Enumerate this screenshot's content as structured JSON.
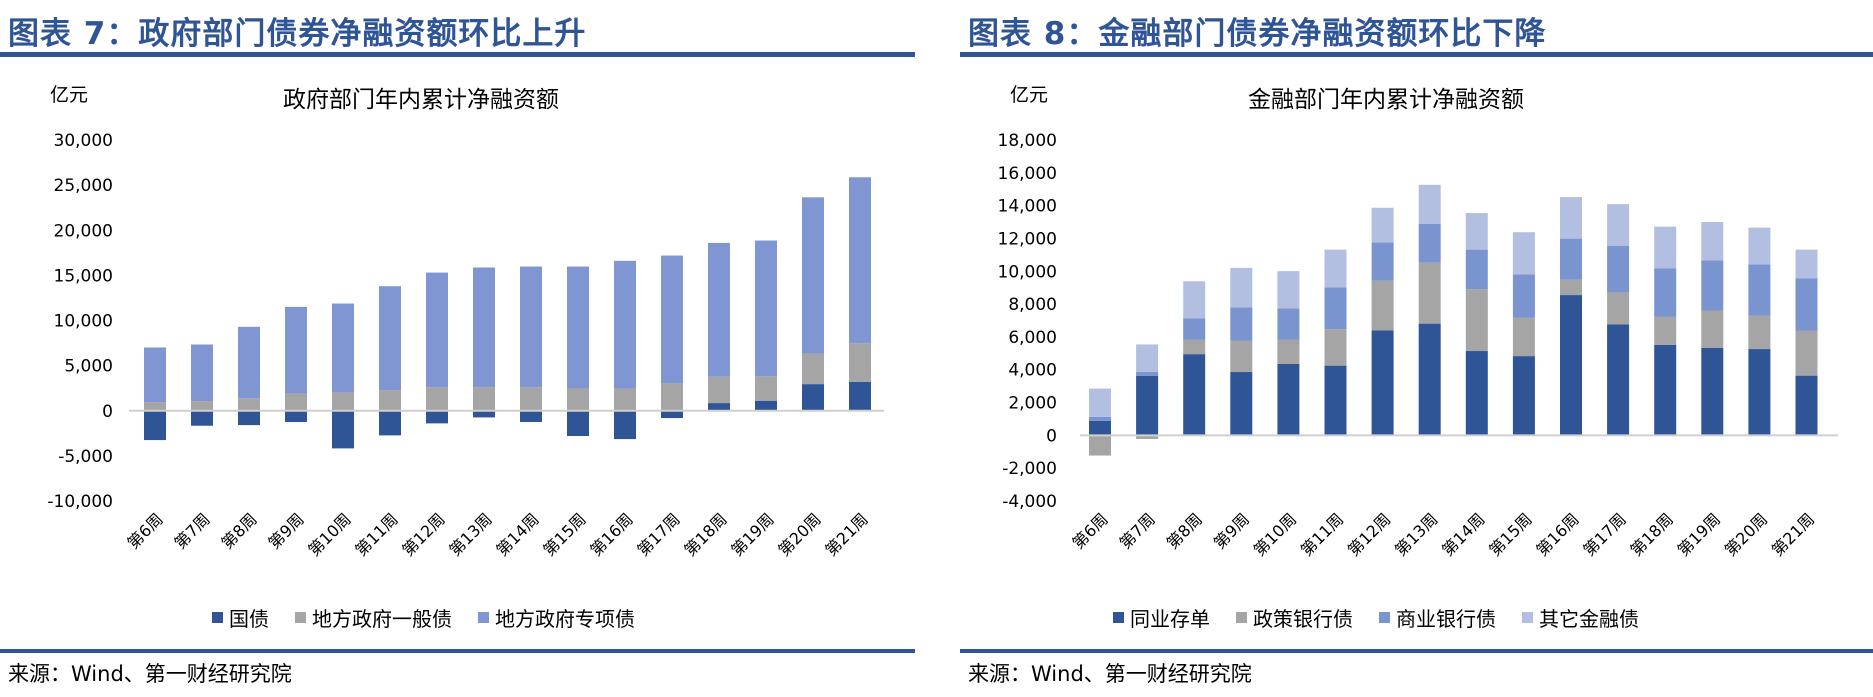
{
  "panels": [
    {
      "figure_title": "图表 7：政府部门债券净融资额环比上升",
      "source": "来源：Wind、第一财经研究院"
    },
    {
      "figure_title": "图表 8：金融部门债券净融资额环比下降",
      "source": "来源：Wind、第一财经研究院"
    }
  ],
  "chart_data": [
    {
      "type": "bar",
      "stacked": true,
      "title": "政府部门年内累计净融资额",
      "ylabel": "亿元",
      "xlabel": "",
      "ylim": [
        -10000,
        30000
      ],
      "yticks": [
        30000,
        25000,
        20000,
        15000,
        10000,
        5000,
        0,
        -5000,
        -10000
      ],
      "ytick_labels": [
        "30,000",
        "25,000",
        "20,000",
        "15,000",
        "10,000",
        "5,000",
        "0",
        "-5,000",
        "-10,000"
      ],
      "categories": [
        "第6周",
        "第7周",
        "第8周",
        "第9周",
        "第10周",
        "第11周",
        "第12周",
        "第13周",
        "第14周",
        "第15周",
        "第16周",
        "第17周",
        "第18周",
        "第19周",
        "第20周",
        "第21周"
      ],
      "legend_position": "bottom",
      "series": [
        {
          "name": "国债",
          "color": "#2f5597",
          "values": [
            -3250,
            -1660,
            -1590,
            -1250,
            -4170,
            -2730,
            -1400,
            -740,
            -1250,
            -2800,
            -3140,
            -810,
            850,
            1110,
            2950,
            3210
          ]
        },
        {
          "name": "地方政府一般债",
          "color": "#a5a5a5",
          "values": [
            960,
            1070,
            1400,
            1920,
            2030,
            2290,
            2620,
            2620,
            2620,
            2470,
            2470,
            3030,
            2910,
            2730,
            3400,
            4280
          ]
        },
        {
          "name": "地方政府专项债",
          "color": "#7f96d2",
          "values": [
            6050,
            6270,
            7900,
            9590,
            9850,
            11510,
            12690,
            13250,
            13360,
            13510,
            14140,
            14170,
            14840,
            15020,
            17300,
            18380
          ]
        }
      ]
    },
    {
      "type": "bar",
      "stacked": true,
      "title": "金融部门年内累计净融资额",
      "ylabel": "亿元",
      "xlabel": "",
      "ylim": [
        -4000,
        18000
      ],
      "yticks": [
        18000,
        16000,
        14000,
        12000,
        10000,
        8000,
        6000,
        4000,
        2000,
        0,
        -2000,
        -4000
      ],
      "ytick_labels": [
        "18,000",
        "16,000",
        "14,000",
        "12,000",
        "10,000",
        "8,000",
        "6,000",
        "4,000",
        "2,000",
        "0",
        "-2,000",
        "-4,000"
      ],
      "categories": [
        "第6周",
        "第7周",
        "第8周",
        "第9周",
        "第10周",
        "第11周",
        "第12周",
        "第13周",
        "第14周",
        "第15周",
        "第16周",
        "第17周",
        "第18周",
        "第19周",
        "第20周",
        "第21周"
      ],
      "legend_position": "bottom",
      "series": [
        {
          "name": "同业存单",
          "color": "#2f5597",
          "values": [
            890,
            3620,
            4950,
            3860,
            4350,
            4250,
            6390,
            6810,
            5140,
            4830,
            8550,
            6770,
            5520,
            5340,
            5260,
            3640
          ]
        },
        {
          "name": "政策银行债",
          "color": "#a5a5a5",
          "values": [
            -1230,
            -220,
            890,
            1920,
            1490,
            2220,
            3030,
            3710,
            3760,
            2350,
            930,
            1940,
            1700,
            2270,
            2040,
            2750
          ]
        },
        {
          "name": "商业银行债",
          "color": "#7a94d0",
          "values": [
            240,
            240,
            1300,
            2020,
            1900,
            2550,
            2330,
            2380,
            2420,
            2630,
            2510,
            2850,
            2950,
            3050,
            3120,
            3170
          ]
        },
        {
          "name": "其它金融债",
          "color": "#b2bfe0",
          "values": [
            1720,
            1680,
            2250,
            2410,
            2270,
            2300,
            2120,
            2370,
            2230,
            2570,
            2530,
            2530,
            2550,
            2340,
            2240,
            1760
          ]
        }
      ]
    }
  ]
}
